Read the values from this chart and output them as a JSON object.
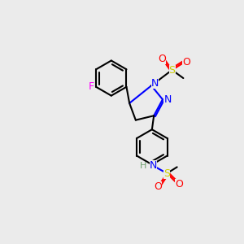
{
  "bg_color": "#ebebeb",
  "bond_color": "#000000",
  "atom_colors": {
    "N": "#0000ff",
    "O": "#ff0000",
    "S": "#cccc00",
    "F": "#ff00ff",
    "H": "#6fa06f",
    "C": "#000000"
  },
  "font_size_atom": 9,
  "font_size_small": 7,
  "lw": 1.5
}
